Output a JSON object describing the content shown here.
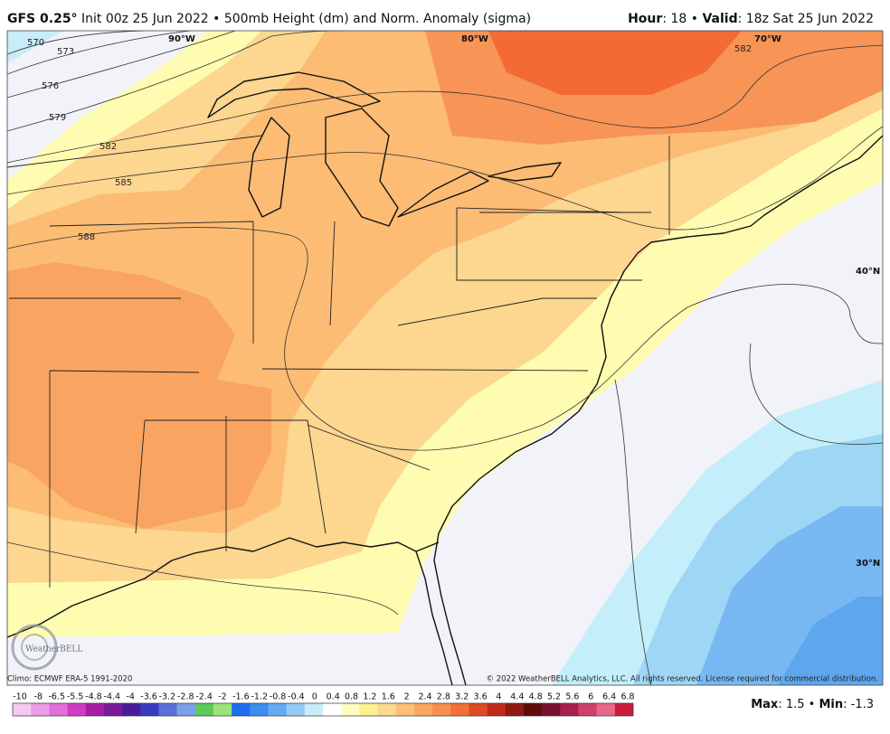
{
  "header": {
    "model": "GFS 0.25°",
    "description": "Init 00z 25 Jun 2022 • 500mb Height (dm) and Norm. Anomaly (sigma)",
    "hour_label": "Hour",
    "hour_value": ": 18 • ",
    "valid_label": "Valid",
    "valid_value": ": 18z Sat 25 Jun 2022"
  },
  "map": {
    "longitude_labels": [
      "90°W",
      "80°W",
      "70°W"
    ],
    "latitude_labels": [
      "40°N",
      "30°N"
    ],
    "contour_labels": [
      "570",
      "573",
      "576",
      "579",
      "582",
      "585",
      "588",
      "582"
    ],
    "logo": "WeatherBELL"
  },
  "footer": {
    "climo": "Climo: ECMWF ERA-5 1991-2020",
    "copyright": "© 2022 WeatherBELL Analytics, LLC. All rights reserved. License required for commercial distribution.",
    "max_label": "Max",
    "max_value": ": 1.5 • ",
    "min_label": "Min",
    "min_value": ": -1.3"
  },
  "colorbar": {
    "labels": [
      "-10",
      "-8",
      "-6.5",
      "-5.5",
      "-4.8",
      "-4.4",
      "-4",
      "-3.6",
      "-3.2",
      "-2.8",
      "-2.4",
      "-2",
      "-1.6",
      "-1.2",
      "-0.8",
      "-0.4",
      "0",
      "0.4",
      "0.8",
      "1.2",
      "1.6",
      "2",
      "2.4",
      "2.8",
      "3.2",
      "3.6",
      "4",
      "4.4",
      "4.8",
      "5.2",
      "5.6",
      "6",
      "6.4",
      "6.8"
    ],
    "colors": [
      "#f6c8f0",
      "#ee9ce6",
      "#e46ed8",
      "#d23cc4",
      "#a81ea6",
      "#7a1a96",
      "#4a1c9c",
      "#3a3cc0",
      "#5a70d8",
      "#7aa0e8",
      "#5ec85a",
      "#9ee27a",
      "#1c6ef0",
      "#3c8cf4",
      "#64aaf4",
      "#96caf6",
      "#c8ecfa",
      "#ffffff",
      "#fefcc0",
      "#fef08c",
      "#fdd890",
      "#fcc078",
      "#f9a862",
      "#f5904c",
      "#f07038",
      "#e04a24",
      "#c02a1a",
      "#8e1a12",
      "#5e0c0a",
      "#7a1030",
      "#a8204c",
      "#d0406a",
      "#e8688a",
      "#c81e3c"
    ]
  }
}
